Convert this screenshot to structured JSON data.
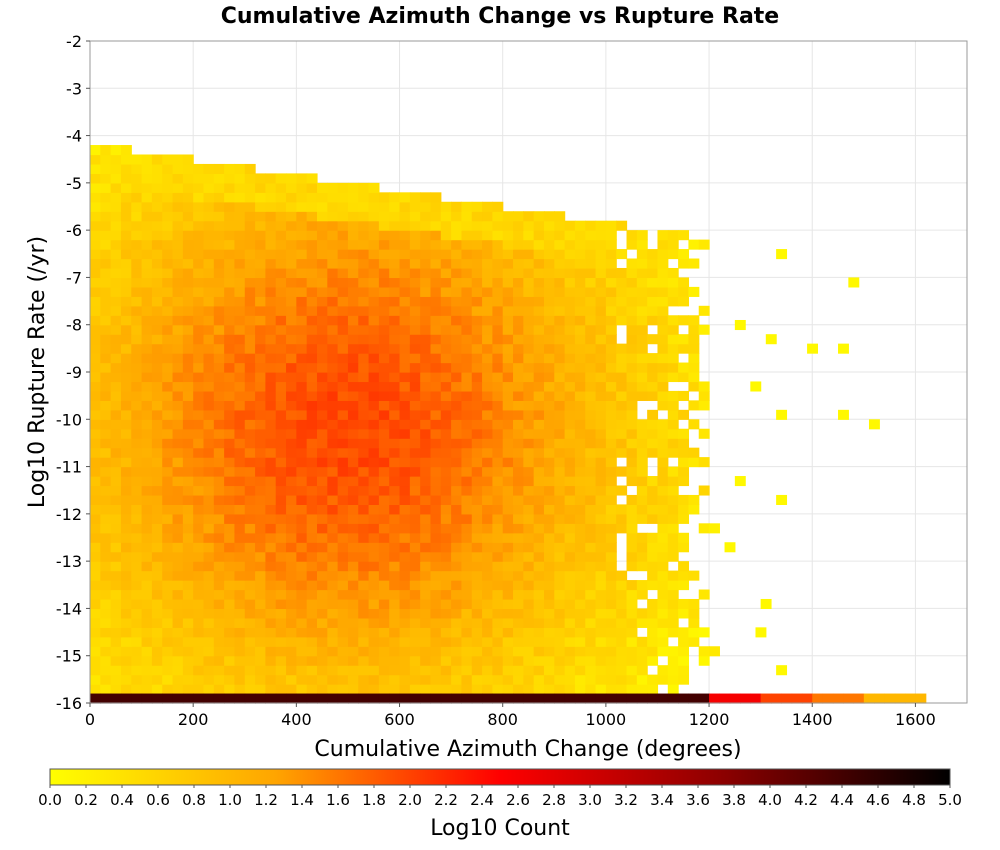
{
  "chart_data": {
    "type": "heatmap",
    "title": "Cumulative Azimuth Change vs Rupture Rate",
    "xlabel": "Cumulative Azimuth Change (degrees)",
    "ylabel": "Log10 Rupture Rate (/yr)",
    "xlim": [
      0,
      1700
    ],
    "ylim": [
      -16,
      -2
    ],
    "x_ticks": [
      0,
      200,
      400,
      600,
      800,
      1000,
      1200,
      1400,
      1600
    ],
    "y_ticks": [
      -2,
      -3,
      -4,
      -5,
      -6,
      -7,
      -8,
      -9,
      -10,
      -11,
      -12,
      -13,
      -14,
      -15,
      -16
    ],
    "grid": true,
    "colorbar": {
      "label": "Log10 Count",
      "range": [
        0.0,
        5.0
      ],
      "ticks": [
        "0.0",
        "0.2",
        "0.4",
        "0.6",
        "0.8",
        "1.0",
        "1.2",
        "1.4",
        "1.6",
        "1.8",
        "2.0",
        "2.2",
        "2.4",
        "2.6",
        "2.8",
        "3.0",
        "3.2",
        "3.4",
        "3.6",
        "3.8",
        "4.0",
        "4.2",
        "4.4",
        "4.6",
        "4.8",
        "5.0"
      ],
      "colors": [
        "#ffff00",
        "#ffa500",
        "#ff0000",
        "#8b0000",
        "#000000"
      ]
    },
    "bin_size": {
      "x": 20,
      "y": 0.2
    },
    "density_model": {
      "x_center": 500,
      "x_spread": 380,
      "y_center": -10.2,
      "y_spread": 4.0,
      "peak_log10_count": 1.95,
      "x_max_extent": 1130,
      "upper_edge_log_rate": -4.3
    },
    "bottom_row": {
      "log_rate": -16,
      "segments": [
        {
          "x0": 0,
          "x1": 1200,
          "log10_count": 4.4
        },
        {
          "x0": 1200,
          "x1": 1300,
          "log10_count": 2.6
        },
        {
          "x0": 1300,
          "x1": 1400,
          "log10_count": 2.0
        },
        {
          "x0": 1400,
          "x1": 1500,
          "log10_count": 1.6
        },
        {
          "x0": 1500,
          "x1": 1620,
          "log10_count": 1.0
        }
      ]
    },
    "outlier_points": [
      {
        "x": 1330,
        "y": -6.6,
        "v": 0.1
      },
      {
        "x": 1470,
        "y": -7.2,
        "v": 0.1
      },
      {
        "x": 1390,
        "y": -8.6,
        "v": 0.1
      },
      {
        "x": 1450,
        "y": -8.6,
        "v": 0.1
      },
      {
        "x": 1310,
        "y": -8.4,
        "v": 0.1
      },
      {
        "x": 1450,
        "y": -10.0,
        "v": 0.1
      },
      {
        "x": 1510,
        "y": -10.2,
        "v": 0.1
      },
      {
        "x": 1330,
        "y": -10.0,
        "v": 0.1
      },
      {
        "x": 1330,
        "y": -11.8,
        "v": 0.1
      },
      {
        "x": 1300,
        "y": -14.0,
        "v": 0.1
      },
      {
        "x": 1330,
        "y": -15.4,
        "v": 0.1
      },
      {
        "x": 1290,
        "y": -14.6,
        "v": 0.1
      },
      {
        "x": 1250,
        "y": -8.1,
        "v": 0.1
      },
      {
        "x": 1280,
        "y": -9.4,
        "v": 0.1
      },
      {
        "x": 1250,
        "y": -11.4,
        "v": 0.1
      },
      {
        "x": 1230,
        "y": -12.8,
        "v": 0.1
      }
    ]
  }
}
